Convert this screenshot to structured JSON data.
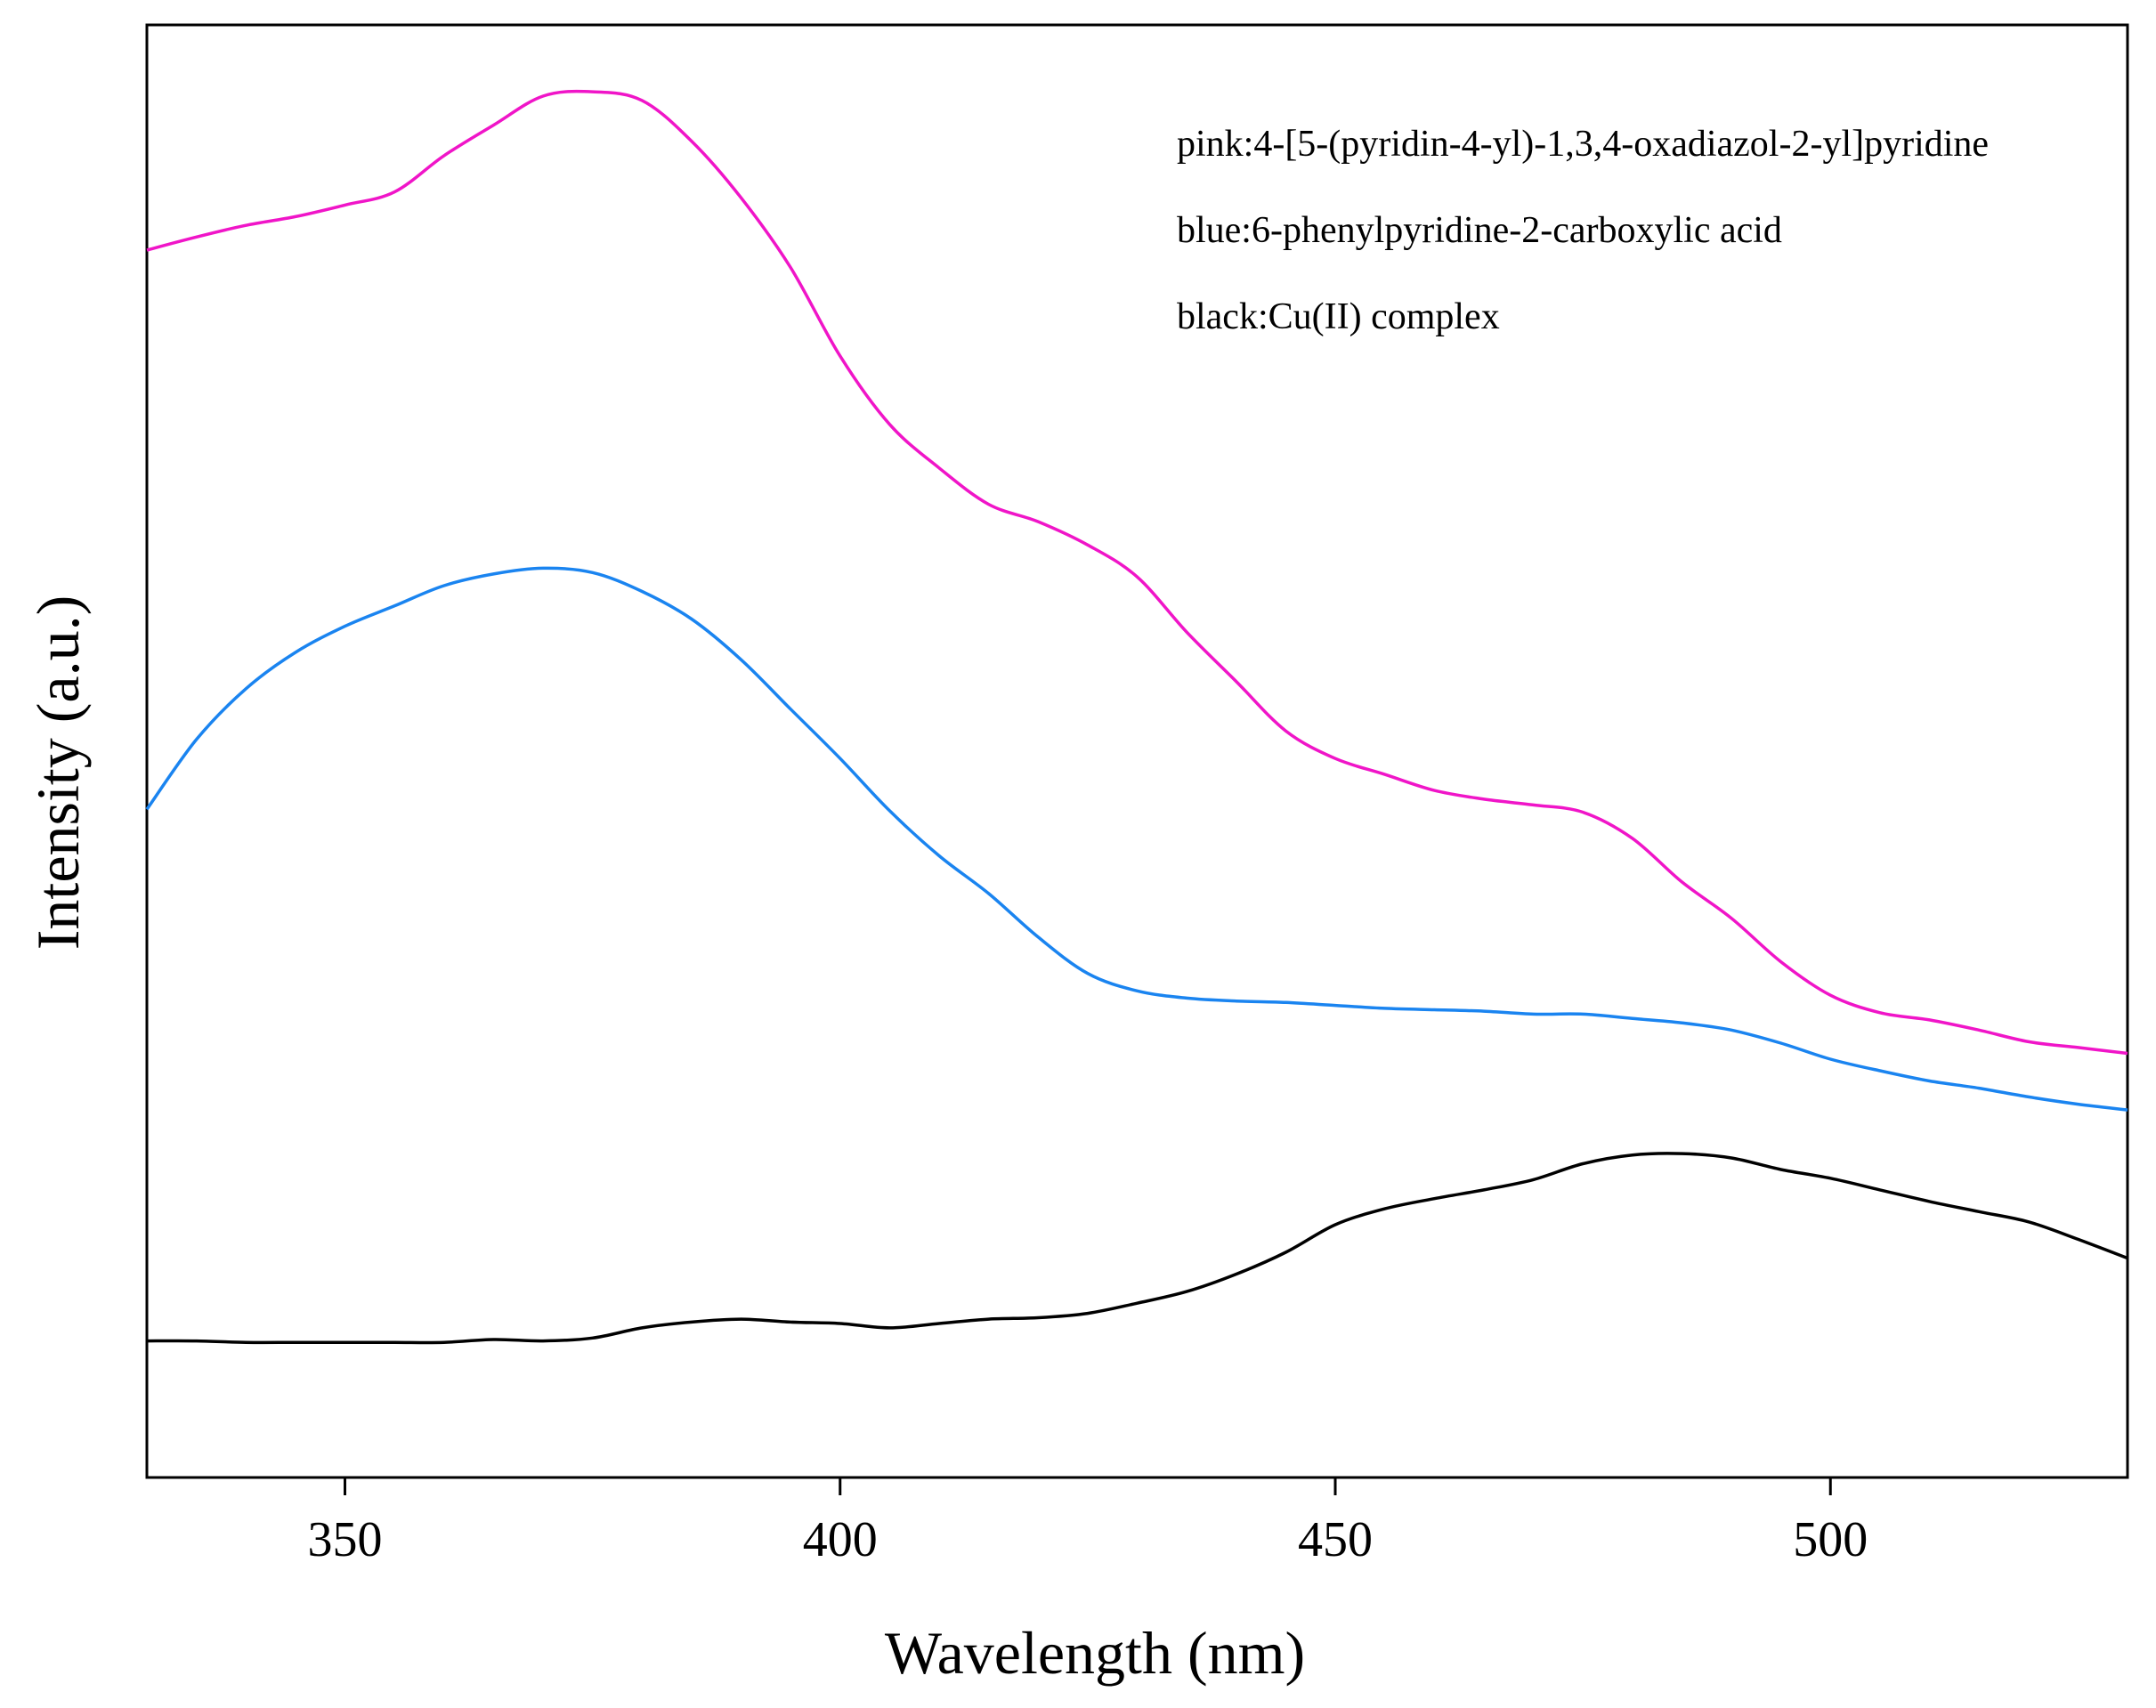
{
  "chart_data": {
    "type": "line",
    "title": "",
    "xlabel": "Wavelength (nm)",
    "ylabel": "Intensity (a.u.)",
    "xlim": [
      330,
      530
    ],
    "ylim": [
      0,
      100
    ],
    "xticks": [
      350,
      400,
      450,
      500
    ],
    "xtick_labels": [
      "350",
      "400",
      "450",
      "500"
    ],
    "yticks_shown": false,
    "grid": false,
    "legend_position": "top-right",
    "legend": [
      "pink:4-[5-(pyridin-4-yl)-1,3,4-oxadiazol-2-yl]pyridine",
      "blue:6-phenylpyridine-2-carboxylic acid",
      "black:Cu(II) complex"
    ],
    "series": [
      {
        "color": "#f015c8",
        "x": [
          330,
          335,
          340,
          345,
          350,
          355,
          360,
          365,
          370,
          375,
          380,
          385,
          390,
          395,
          400,
          405,
          410,
          415,
          420,
          425,
          430,
          435,
          440,
          445,
          450,
          455,
          460,
          465,
          470,
          475,
          480,
          485,
          490,
          495,
          500,
          505,
          510,
          515,
          520,
          525,
          530
        ],
        "values": [
          84.5,
          85.4,
          86.2,
          86.8,
          87.6,
          88.5,
          91.0,
          93.1,
          95.1,
          95.4,
          94.8,
          92.0,
          88.1,
          83.3,
          77.2,
          72.5,
          69.5,
          67.0,
          65.8,
          64.2,
          62.0,
          58.2,
          54.8,
          51.4,
          49.5,
          48.4,
          47.3,
          46.7,
          46.3,
          45.8,
          44.0,
          41.0,
          38.5,
          35.5,
          33.2,
          32.0,
          31.5,
          30.8,
          30.0,
          29.6,
          29.2
        ]
      },
      {
        "color": "#1a84f0",
        "x": [
          330,
          335,
          340,
          345,
          350,
          355,
          360,
          365,
          370,
          375,
          380,
          385,
          390,
          395,
          400,
          405,
          410,
          415,
          420,
          425,
          430,
          435,
          440,
          445,
          450,
          455,
          460,
          465,
          470,
          475,
          480,
          485,
          490,
          495,
          500,
          505,
          510,
          515,
          520,
          525,
          530
        ],
        "values": [
          46.0,
          50.8,
          54.3,
          56.8,
          58.6,
          60.0,
          61.4,
          62.2,
          62.6,
          62.3,
          61.0,
          59.1,
          56.3,
          52.9,
          49.5,
          45.9,
          42.8,
          40.2,
          37.2,
          34.7,
          33.5,
          33.0,
          32.8,
          32.7,
          32.5,
          32.3,
          32.2,
          32.1,
          31.9,
          31.9,
          31.6,
          31.3,
          30.8,
          29.9,
          28.8,
          28.0,
          27.3,
          26.8,
          26.2,
          25.7,
          25.3
        ]
      },
      {
        "color": "#000000",
        "x": [
          330,
          335,
          340,
          345,
          350,
          355,
          360,
          365,
          370,
          375,
          380,
          385,
          390,
          395,
          400,
          405,
          410,
          415,
          420,
          425,
          430,
          435,
          440,
          445,
          450,
          455,
          460,
          465,
          470,
          475,
          480,
          485,
          490,
          495,
          500,
          505,
          510,
          515,
          520,
          525,
          530
        ],
        "values": [
          9.4,
          9.4,
          9.3,
          9.3,
          9.3,
          9.3,
          9.3,
          9.5,
          9.4,
          9.6,
          10.3,
          10.7,
          10.9,
          10.7,
          10.6,
          10.3,
          10.6,
          10.9,
          11.0,
          11.3,
          12.0,
          12.8,
          14.0,
          15.5,
          17.4,
          18.5,
          19.2,
          19.8,
          20.5,
          21.6,
          22.2,
          22.3,
          22.0,
          21.2,
          20.6,
          19.8,
          19.0,
          18.3,
          17.6,
          16.4,
          15.1
        ]
      }
    ]
  }
}
